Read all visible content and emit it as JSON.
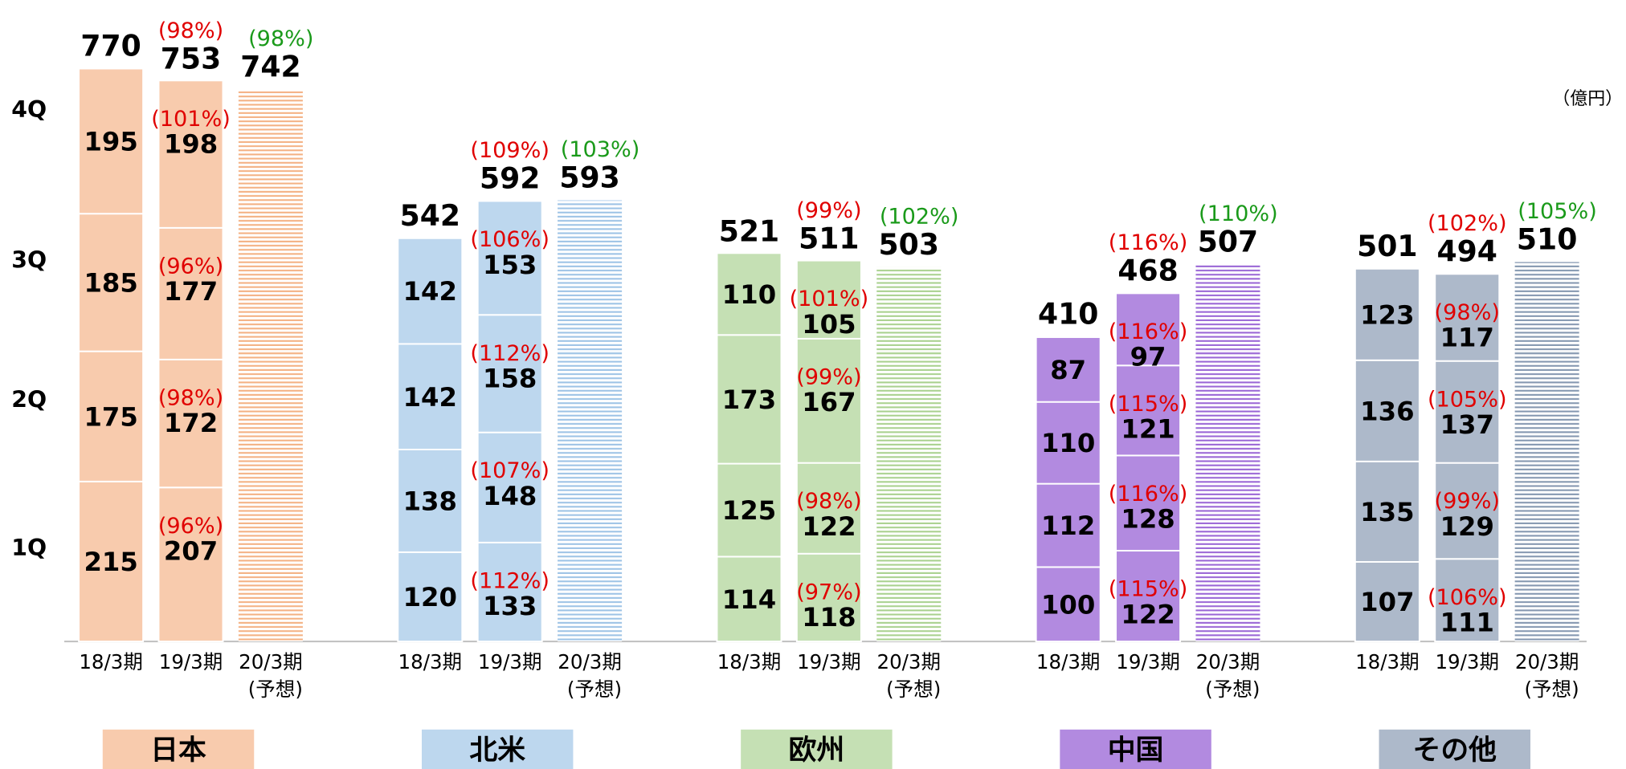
{
  "chart_data": {
    "type": "stacked_bar_group",
    "unit": "（億円）",
    "quarters": [
      "1Q",
      "2Q",
      "3Q",
      "4Q"
    ],
    "periods": [
      "18/3期",
      "19/3期",
      "20/3期"
    ],
    "forecast_note": "(予想)",
    "groups": [
      {
        "name": "日本",
        "color": "#f8cbad",
        "hatch": "#f4b183",
        "bars": [
          {
            "quarters": [
              215,
              175,
              185,
              195
            ],
            "total": 770
          },
          {
            "quarters": [
              207,
              172,
              177,
              198
            ],
            "quarter_labels": [
              "(96%)",
              "(98%)",
              "(96%)",
              "(101%)"
            ],
            "total": 753,
            "total_label": "(98%)"
          },
          {
            "total": 742,
            "total_label": "(98%)"
          }
        ]
      },
      {
        "name": "北米",
        "color": "#bdd7ee",
        "hatch": "#9dc3e6",
        "bars": [
          {
            "quarters": [
              120,
              138,
              142,
              142
            ],
            "total": 542
          },
          {
            "quarters": [
              133,
              148,
              158,
              153
            ],
            "quarter_labels": [
              "(112%)",
              "(107%)",
              "(112%)",
              "(106%)"
            ],
            "total": 592,
            "total_label": "(109%)"
          },
          {
            "total": 593,
            "total_label": "(103%)"
          }
        ]
      },
      {
        "name": "欧州",
        "color": "#c5e0b4",
        "hatch": "#a9d18e",
        "bars": [
          {
            "quarters": [
              114,
              125,
              173,
              110
            ],
            "total": 521
          },
          {
            "quarters": [
              118,
              122,
              167,
              105
            ],
            "quarter_labels": [
              "(97%)",
              "(98%)",
              "(99%)",
              "(101%)"
            ],
            "total": 511,
            "total_label": "(99%)"
          },
          {
            "total": 503,
            "total_label": "(102%)"
          }
        ]
      },
      {
        "name": "中国",
        "color": "#b28ae0",
        "hatch": "#9a66d6",
        "bars": [
          {
            "quarters": [
              100,
              112,
              110,
              87
            ],
            "total": 410
          },
          {
            "quarters": [
              122,
              128,
              121,
              97
            ],
            "quarter_labels": [
              "(115%)",
              "(116%)",
              "(115%)",
              "(116%)"
            ],
            "total": 468,
            "total_label": "(116%)"
          },
          {
            "total": 507,
            "total_label": "(110%)"
          }
        ]
      },
      {
        "name": "その他",
        "color": "#adb9ca",
        "hatch": "#8497b0",
        "bars": [
          {
            "quarters": [
              107,
              135,
              136,
              123
            ],
            "total": 501
          },
          {
            "quarters": [
              111,
              129,
              137,
              117
            ],
            "quarter_labels": [
              "(106%)",
              "(99%)",
              "(105%)",
              "(98%)"
            ],
            "total": 494,
            "total_label": "(102%)"
          },
          {
            "total": 510,
            "total_label": "(105%)"
          }
        ]
      }
    ]
  }
}
